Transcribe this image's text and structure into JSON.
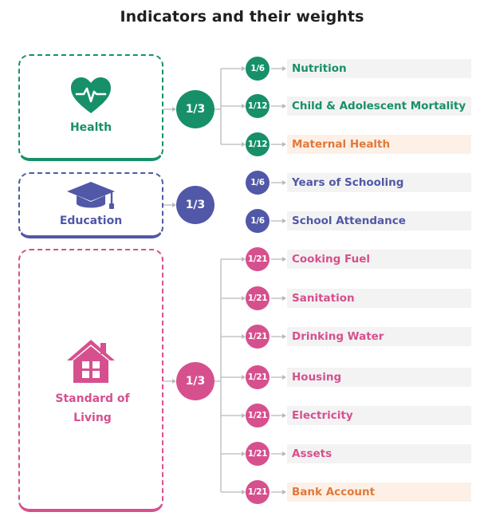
{
  "title": "Indicators and their weights",
  "colors": {
    "health": "#17906a",
    "education": "#5158a7",
    "living": "#d6508e",
    "highlight_text": "#e0793b",
    "connector": "#b9b9b9"
  },
  "dimensions": [
    {
      "key": "health",
      "label": "Health",
      "icon": "heart-pulse-icon",
      "weight": "1/3",
      "indicators": [
        {
          "weight": "1/6",
          "label": "Nutrition",
          "highlight": false
        },
        {
          "weight": "1/12",
          "label": "Child & Adolescent Mortality",
          "highlight": false
        },
        {
          "weight": "1/12",
          "label": "Maternal Health",
          "highlight": true
        }
      ]
    },
    {
      "key": "education",
      "label": "Education",
      "icon": "graduation-cap-icon",
      "weight": "1/3",
      "indicators": [
        {
          "weight": "1/6",
          "label": "Years of Schooling",
          "highlight": false
        },
        {
          "weight": "1/6",
          "label": "School Attendance",
          "highlight": false
        }
      ]
    },
    {
      "key": "living",
      "label": "Standard of Living",
      "icon": "house-icon",
      "weight": "1/3",
      "indicators": [
        {
          "weight": "1/21",
          "label": "Cooking Fuel",
          "highlight": false
        },
        {
          "weight": "1/21",
          "label": "Sanitation",
          "highlight": false
        },
        {
          "weight": "1/21",
          "label": "Drinking Water",
          "highlight": false
        },
        {
          "weight": "1/21",
          "label": "Housing",
          "highlight": false
        },
        {
          "weight": "1/21",
          "label": "Electricity",
          "highlight": false
        },
        {
          "weight": "1/21",
          "label": "Assets",
          "highlight": false
        },
        {
          "weight": "1/21",
          "label": "Bank Account",
          "highlight": true
        }
      ]
    }
  ]
}
